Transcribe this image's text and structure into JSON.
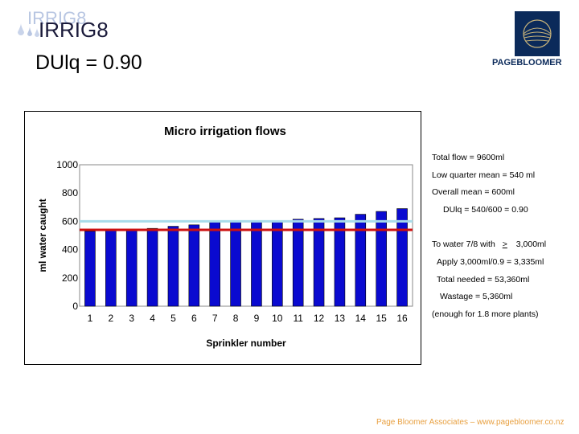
{
  "header": {
    "logo_text": "IRRIG8",
    "logo_ghost_text": "IRRIG8",
    "slide_title": "DUlq = 0.90",
    "brand_name": "PAGEBLOOMER"
  },
  "chart_data": {
    "type": "bar",
    "title": "Micro irrigation flows",
    "xlabel": "Sprinkler number",
    "ylabel": "ml water caught",
    "categories": [
      "1",
      "2",
      "3",
      "4",
      "5",
      "6",
      "7",
      "8",
      "9",
      "10",
      "11",
      "12",
      "13",
      "14",
      "15",
      "16"
    ],
    "values": [
      530,
      535,
      540,
      550,
      565,
      575,
      595,
      600,
      600,
      605,
      615,
      620,
      625,
      650,
      670,
      690
    ],
    "ylim": [
      0,
      1000
    ],
    "yticks": [
      "0",
      "200",
      "400",
      "600",
      "800",
      "1000"
    ],
    "grid": false,
    "bar_color": "#0a0ad0",
    "reference_lines": [
      {
        "value": 600,
        "color": "#a8dcea"
      },
      {
        "value": 540,
        "color": "#cc1111"
      }
    ]
  },
  "notes": {
    "total_flow": "Total flow           =  9600ml",
    "low_quarter": "Low quarter mean =    540 ml",
    "overall_mean": "Overall mean        =   600ml",
    "dulq": "DUlq = 540/600 =  0.90",
    "to_water_prefix": "To water 7/8 with",
    "to_water_symbol": ">",
    "to_water_suffix": "3,000ml",
    "apply": "Apply 3,000ml/0.9 =  3,335ml",
    "total_needed": "Total needed      =  53,360ml",
    "wastage": "Wastage             =    5,360ml",
    "enough": "(enough for 1.8 more plants)"
  },
  "footer": {
    "text": "Page Bloomer Associates – www.pagebloomer.co.nz"
  }
}
